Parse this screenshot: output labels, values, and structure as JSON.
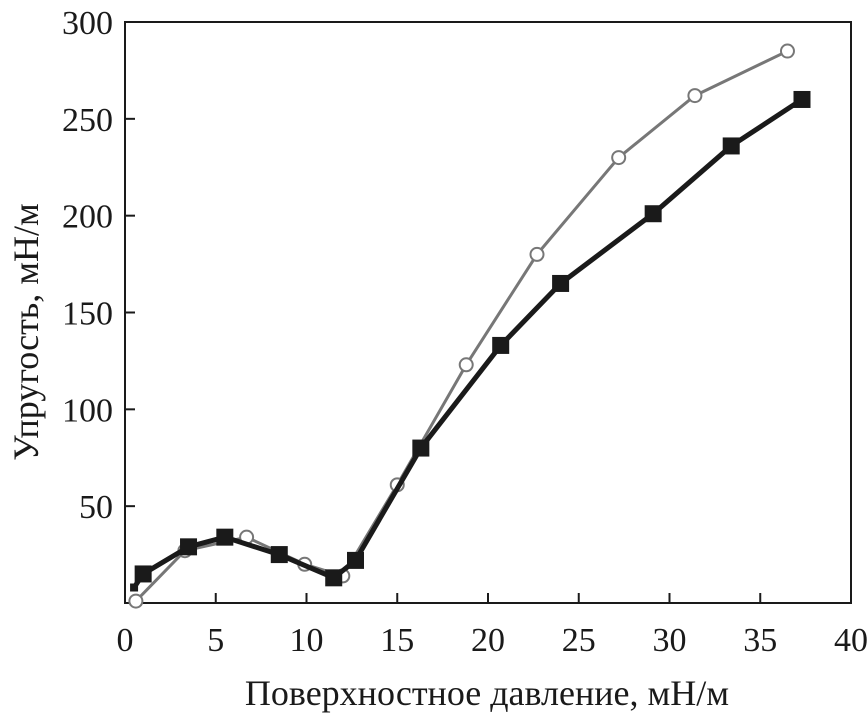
{
  "chart_data": {
    "type": "line",
    "title": "",
    "xlabel": "Поверхностное давление, мН/м",
    "ylabel": "Упругость, мН/м",
    "xlim": [
      0,
      40
    ],
    "ylim": [
      0,
      300
    ],
    "x_ticks": [
      "0",
      "5",
      "10",
      "15",
      "20",
      "25",
      "30",
      "35",
      "40"
    ],
    "y_ticks": [
      "50",
      "100",
      "150",
      "200",
      "250",
      "300"
    ],
    "grid": false,
    "legend": "none",
    "series": [
      {
        "marker": "filled-square",
        "color": "#1a1a1a",
        "points": [
          [
            0.5,
            8
          ],
          [
            1.0,
            15
          ],
          [
            3.5,
            29
          ],
          [
            5.5,
            34
          ],
          [
            8.5,
            25
          ],
          [
            11.5,
            13
          ],
          [
            12.7,
            22
          ],
          [
            16.3,
            80
          ],
          [
            20.7,
            133
          ],
          [
            24.0,
            165
          ],
          [
            29.1,
            201
          ],
          [
            33.4,
            236
          ],
          [
            37.3,
            260
          ]
        ]
      },
      {
        "marker": "open-circle",
        "color": "#777777",
        "points": [
          [
            0.6,
            1
          ],
          [
            3.3,
            27
          ],
          [
            6.7,
            34
          ],
          [
            9.9,
            20
          ],
          [
            12.0,
            14
          ],
          [
            15.0,
            61
          ],
          [
            18.8,
            123
          ],
          [
            22.7,
            180
          ],
          [
            27.2,
            230
          ],
          [
            31.4,
            262
          ],
          [
            36.5,
            285
          ]
        ]
      }
    ]
  }
}
